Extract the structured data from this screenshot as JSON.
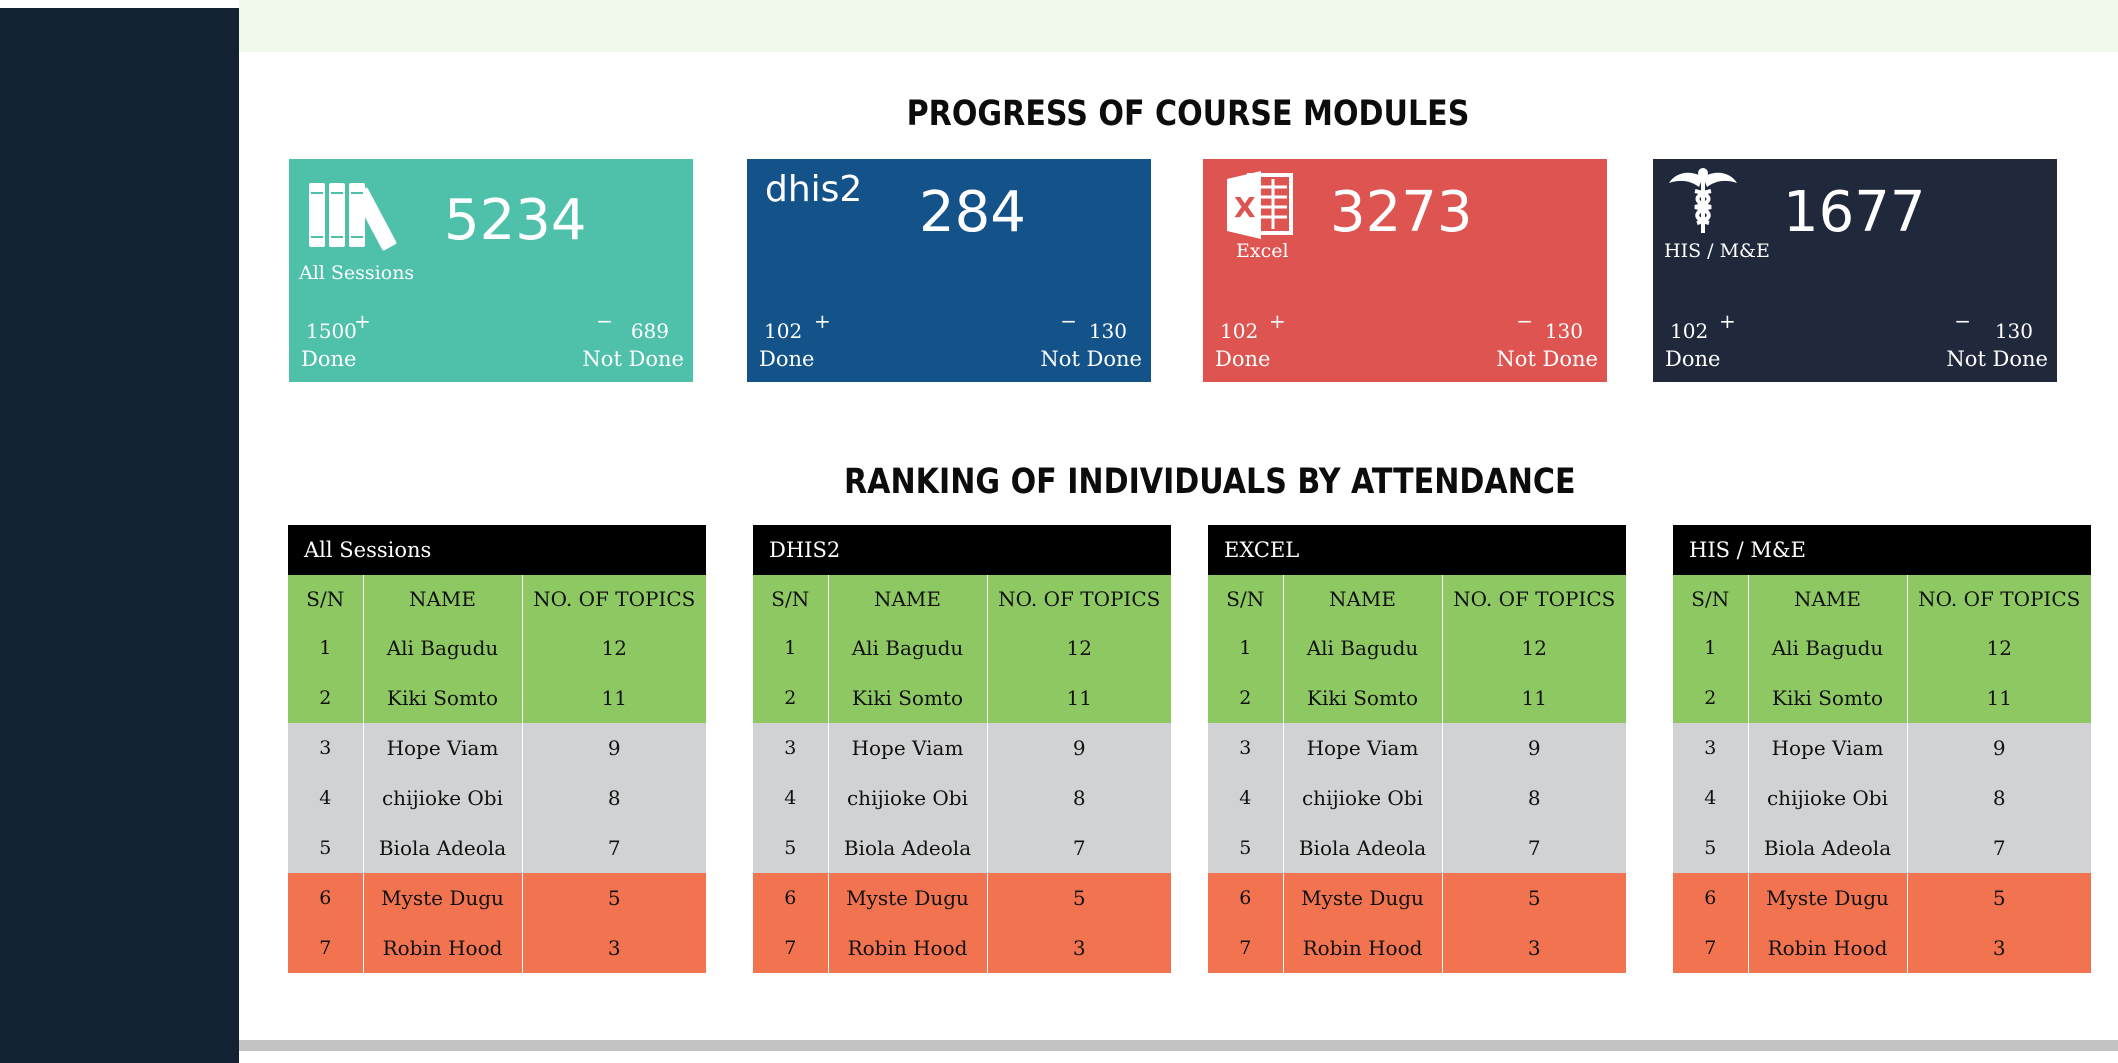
{
  "titles": {
    "progress": "PROGRESS OF COURSE MODULES",
    "ranking": "RANKING OF INDIVIDUALS BY ATTENDANCE"
  },
  "colors": {
    "sidebar": "#132233",
    "card_all": "#4fc1aa",
    "card_dhis2": "#14538a",
    "card_excel": "#de5450",
    "card_his": "#1f293b",
    "row_green": "#8ec863",
    "row_grey": "#d1d2d3",
    "row_orange": "#f1734f"
  },
  "cards": [
    {
      "icon": "books-icon",
      "logo_text": "",
      "caption": "All Sessions",
      "total": "5234",
      "done": "1500",
      "done_label": "Done",
      "plus": "+",
      "minus": "−",
      "not_done": "689",
      "not_done_label": "Not Done"
    },
    {
      "icon": "dhis2-logo",
      "logo_text": "dhis2",
      "caption": "",
      "total": "284",
      "done": "102",
      "done_label": "Done",
      "plus": "+",
      "minus": "−",
      "not_done": "130",
      "not_done_label": "Not Done"
    },
    {
      "icon": "excel-icon",
      "logo_text": "",
      "caption": "Excel",
      "total": "3273",
      "done": "102",
      "done_label": "Done",
      "plus": "+",
      "minus": "−",
      "not_done": "130",
      "not_done_label": "Not Done"
    },
    {
      "icon": "caduceus-icon",
      "logo_text": "",
      "caption": "HIS / M&E",
      "total": "1677",
      "done": "102",
      "done_label": "Done",
      "plus": "+",
      "minus": "−",
      "not_done": "130",
      "not_done_label": "Not Done"
    }
  ],
  "rankings": [
    {
      "title": "All Sessions",
      "columns": [
        "S/N",
        "NAME",
        "NO. OF TOPICS"
      ],
      "rows": [
        [
          "1",
          "Ali Bagudu",
          "12"
        ],
        [
          "2",
          "Kiki Somto",
          "11"
        ],
        [
          "3",
          "Hope Viam",
          "9"
        ],
        [
          "4",
          "chijioke Obi",
          "8"
        ],
        [
          "5",
          "Biola Adeola",
          "7"
        ],
        [
          "6",
          "Myste Dugu",
          "5"
        ],
        [
          "7",
          "Robin Hood",
          "3"
        ]
      ]
    },
    {
      "title": "DHIS2",
      "columns": [
        "S/N",
        "NAME",
        "NO. OF TOPICS"
      ],
      "rows": [
        [
          "1",
          "Ali Bagudu",
          "12"
        ],
        [
          "2",
          "Kiki Somto",
          "11"
        ],
        [
          "3",
          "Hope Viam",
          "9"
        ],
        [
          "4",
          "chijioke Obi",
          "8"
        ],
        [
          "5",
          "Biola Adeola",
          "7"
        ],
        [
          "6",
          "Myste Dugu",
          "5"
        ],
        [
          "7",
          "Robin Hood",
          "3"
        ]
      ]
    },
    {
      "title": "EXCEL",
      "columns": [
        "S/N",
        "NAME",
        "NO. OF TOPICS"
      ],
      "rows": [
        [
          "1",
          "Ali Bagudu",
          "12"
        ],
        [
          "2",
          "Kiki Somto",
          "11"
        ],
        [
          "3",
          "Hope Viam",
          "9"
        ],
        [
          "4",
          "chijioke Obi",
          "8"
        ],
        [
          "5",
          "Biola Adeola",
          "7"
        ],
        [
          "6",
          "Myste Dugu",
          "5"
        ],
        [
          "7",
          "Robin Hood",
          "3"
        ]
      ]
    },
    {
      "title": "HIS / M&E",
      "columns": [
        "S/N",
        "NAME",
        "NO. OF TOPICS"
      ],
      "rows": [
        [
          "1",
          "Ali Bagudu",
          "12"
        ],
        [
          "2",
          "Kiki Somto",
          "11"
        ],
        [
          "3",
          "Hope Viam",
          "9"
        ],
        [
          "4",
          "chijioke Obi",
          "8"
        ],
        [
          "5",
          "Biola Adeola",
          "7"
        ],
        [
          "6",
          "Myste Dugu",
          "5"
        ],
        [
          "7",
          "Robin Hood",
          "3"
        ]
      ]
    }
  ]
}
